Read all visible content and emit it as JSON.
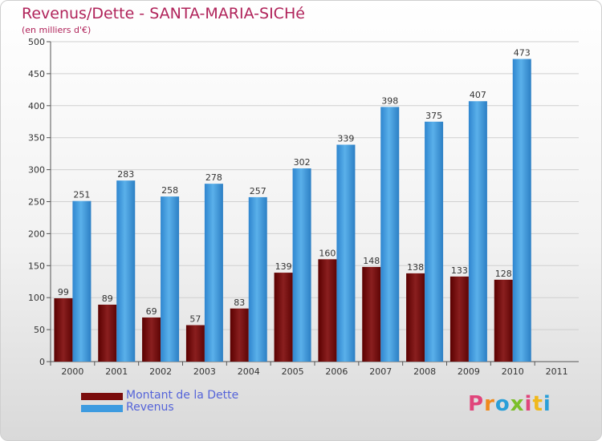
{
  "header": {
    "title": "Revenus/Dette - SANTA-MARIA-SICHé",
    "subtitle": "(en milliers d'€)"
  },
  "legend": {
    "items": [
      {
        "label": "Montant de la Dette",
        "color": "#7a0c0c"
      },
      {
        "label": "Revenus",
        "color": "#3d9be0"
      }
    ]
  },
  "logo": {
    "text": "Proxiti"
  },
  "chart_data": {
    "type": "bar",
    "categories": [
      "2000",
      "2001",
      "2002",
      "2003",
      "2004",
      "2005",
      "2006",
      "2007",
      "2008",
      "2009",
      "2010",
      "2011"
    ],
    "series": [
      {
        "name": "Montant de la Dette",
        "color": "#7a0c0c",
        "values": [
          99,
          89,
          69,
          57,
          83,
          139,
          160,
          148,
          138,
          133,
          128,
          null
        ]
      },
      {
        "name": "Revenus",
        "color": "#3d9be0",
        "values": [
          251,
          283,
          258,
          278,
          257,
          302,
          339,
          398,
          375,
          407,
          473,
          null
        ]
      }
    ],
    "ylim": [
      0,
      500
    ],
    "yticks": [
      0,
      50,
      100,
      150,
      200,
      250,
      300,
      350,
      400,
      450,
      500
    ],
    "grid": true,
    "legend_position": "bottom-left"
  }
}
